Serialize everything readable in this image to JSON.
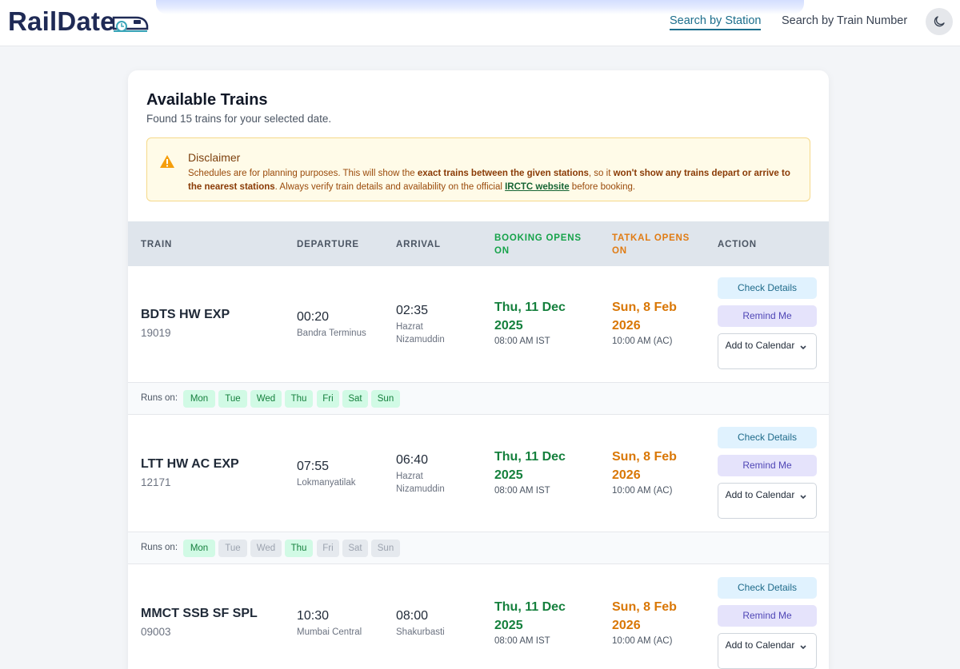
{
  "header": {
    "logo_text": "RailDate",
    "nav": [
      {
        "label": "Search by Station",
        "active": true
      },
      {
        "label": "Search by Train Number",
        "active": false
      }
    ],
    "theme_icon": "moon-icon"
  },
  "results": {
    "title": "Available Trains",
    "subtitle": "Found 15 trains for your selected date."
  },
  "disclaimer": {
    "icon": "warning-icon",
    "title": "Disclaimer",
    "text_1": "Schedules are for planning purposes. This will show the ",
    "bold_1": "exact trains between the given stations",
    "text_2": ", so it ",
    "bold_2": "won't show any trains depart or arrive to the nearest stations",
    "text_3": ". Always verify train details and availability on the official ",
    "link": "IRCTC website",
    "text_4": " before booking."
  },
  "table": {
    "headers": [
      "TRAIN",
      "DEPARTURE",
      "ARRIVAL",
      "BOOKING OPENS ON",
      "TATKAL OPENS ON",
      "ACTION"
    ],
    "runs_label": "Runs on:",
    "days": [
      "Mon",
      "Tue",
      "Wed",
      "Thu",
      "Fri",
      "Sat",
      "Sun"
    ],
    "actions": {
      "check": "Check Details",
      "remind": "Remind Me",
      "calendar": "Add to Calendar"
    },
    "rows": [
      {
        "name": "BDTS HW EXP",
        "number": "19019",
        "dep_time": "00:20",
        "dep_station": "Bandra Terminus",
        "arr_time": "02:35",
        "arr_station": "Hazrat Nizamuddin",
        "booking_date": "Thu, 11 Dec 2025",
        "booking_time": "08:00 AM IST",
        "tatkal_date": "Sun, 8 Feb 2026",
        "tatkal_time": "10:00 AM (AC)",
        "runs": [
          true,
          true,
          true,
          true,
          true,
          true,
          true
        ]
      },
      {
        "name": "LTT HW AC EXP",
        "number": "12171",
        "dep_time": "07:55",
        "dep_station": "Lokmanyatilak",
        "arr_time": "06:40",
        "arr_station": "Hazrat Nizamuddin",
        "booking_date": "Thu, 11 Dec 2025",
        "booking_time": "08:00 AM IST",
        "tatkal_date": "Sun, 8 Feb 2026",
        "tatkal_time": "10:00 AM (AC)",
        "runs": [
          true,
          false,
          false,
          true,
          false,
          false,
          false
        ]
      },
      {
        "name": "MMCT SSB SF SPL",
        "number": "09003",
        "dep_time": "10:30",
        "dep_station": "Mumbai Central",
        "arr_time": "08:00",
        "arr_station": "Shakurbasti",
        "booking_date": "Thu, 11 Dec 2025",
        "booking_time": "08:00 AM IST",
        "tatkal_date": "Sun, 8 Feb 2026",
        "tatkal_time": "10:00 AM (AC)",
        "runs": []
      }
    ]
  }
}
